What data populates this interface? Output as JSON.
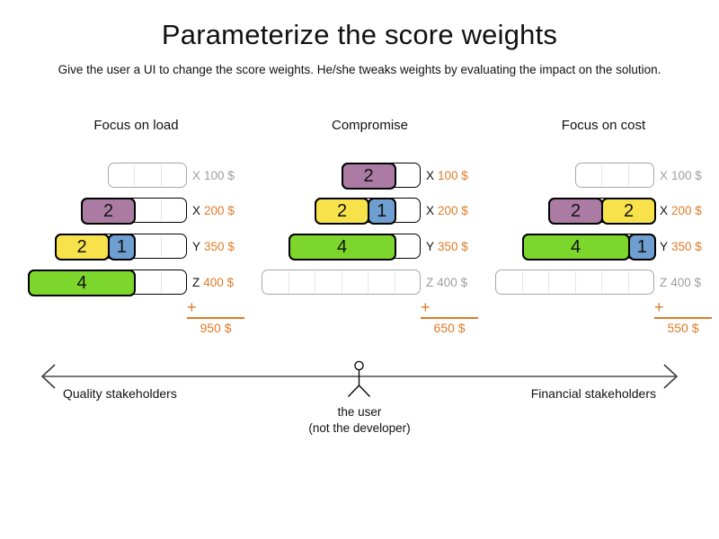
{
  "title": "Parameterize the score weights",
  "subtitle": "Give the user a UI to change the score weights. He/she tweaks weights by evaluating the impact on the solution.",
  "plus_sign": "+",
  "colors": {
    "purple": "#ab7ba4",
    "yellow": "#f7e24c",
    "blue": "#6f9fd0",
    "green": "#7cd62b",
    "orange": "#e07b27",
    "inactive_grey": "#9e9e9e",
    "divider_grey": "#e6e6e6",
    "axis_line_grey": "#787878"
  },
  "panels": [
    {
      "title": "Focus on load",
      "total": "950 $",
      "rows": [
        {
          "computer": "X",
          "cost": "100 $",
          "cells": 3,
          "active": false,
          "blocks": []
        },
        {
          "computer": "X",
          "cost": "200 $",
          "cells": 4,
          "active": true,
          "blocks": [
            {
              "label": "2",
              "size": 2,
              "color": "purple"
            }
          ]
        },
        {
          "computer": "Y",
          "cost": "350 $",
          "cells": 5,
          "active": true,
          "blocks": [
            {
              "label": "2",
              "size": 2,
              "color": "yellow"
            },
            {
              "label": "1",
              "size": 1,
              "color": "blue"
            }
          ]
        },
        {
          "computer": "Z",
          "cost": "400 $",
          "cells": 6,
          "active": true,
          "blocks": [
            {
              "label": "4",
              "size": 4,
              "color": "green"
            }
          ]
        }
      ]
    },
    {
      "title": "Compromise",
      "total": "650 $",
      "rows": [
        {
          "computer": "X",
          "cost": "100 $",
          "cells": 3,
          "active": true,
          "blocks": [
            {
              "label": "2",
              "size": 2,
              "color": "purple"
            }
          ]
        },
        {
          "computer": "X",
          "cost": "200 $",
          "cells": 4,
          "active": true,
          "blocks": [
            {
              "label": "2",
              "size": 2,
              "color": "yellow"
            },
            {
              "label": "1",
              "size": 1,
              "color": "blue"
            }
          ]
        },
        {
          "computer": "Y",
          "cost": "350 $",
          "cells": 5,
          "active": true,
          "blocks": [
            {
              "label": "4",
              "size": 4,
              "color": "green"
            }
          ]
        },
        {
          "computer": "Z",
          "cost": "400 $",
          "cells": 6,
          "active": false,
          "blocks": []
        }
      ]
    },
    {
      "title": "Focus on cost",
      "total": "550 $",
      "rows": [
        {
          "computer": "X",
          "cost": "100 $",
          "cells": 3,
          "active": false,
          "blocks": []
        },
        {
          "computer": "X",
          "cost": "200 $",
          "cells": 4,
          "active": true,
          "blocks": [
            {
              "label": "2",
              "size": 2,
              "color": "purple"
            },
            {
              "label": "2",
              "size": 2,
              "color": "yellow"
            }
          ]
        },
        {
          "computer": "Y",
          "cost": "350 $",
          "cells": 5,
          "active": true,
          "blocks": [
            {
              "label": "4",
              "size": 4,
              "color": "green"
            },
            {
              "label": "1",
              "size": 1,
              "color": "blue"
            }
          ]
        },
        {
          "computer": "Z",
          "cost": "400 $",
          "cells": 6,
          "active": false,
          "blocks": []
        }
      ]
    }
  ],
  "axis": {
    "left_label": "Quality stakeholders",
    "right_label": "Financial stakeholders",
    "user_label": "the user",
    "user_sublabel": "(not the developer)"
  }
}
